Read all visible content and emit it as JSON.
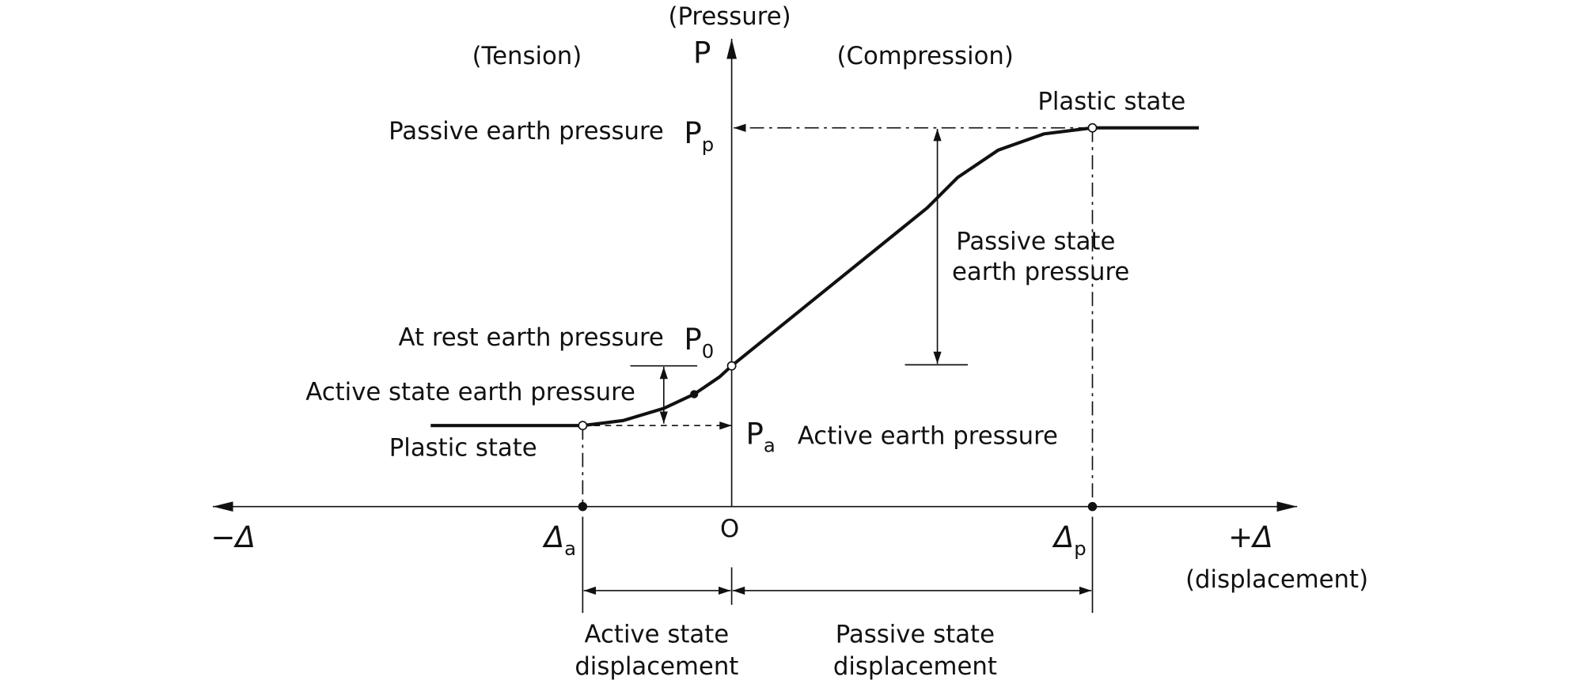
{
  "axes": {
    "y_caption": "(Pressure)",
    "y_label": "P",
    "x_neg": "−Δ",
    "x_pos": "+Δ",
    "x_caption": "(displacement)",
    "origin": "O",
    "delta_a": {
      "main": "Δ",
      "sub": "a"
    },
    "delta_p": {
      "main": "Δ",
      "sub": "p"
    }
  },
  "regions": {
    "left": "(Tension)",
    "right": "(Compression)"
  },
  "labels": {
    "passive_earth_pressure": "Passive earth pressure",
    "p_p": {
      "main": "P",
      "sub": "p"
    },
    "plastic_state_right": "Plastic state",
    "passive_state_earth_pressure": [
      "Passive state",
      "earth pressure"
    ],
    "at_rest_earth_pressure": "At rest earth pressure",
    "p_0": {
      "main": "P",
      "sub": "0"
    },
    "active_state_earth_pressure": "Active state earth pressure",
    "plastic_state_left": "Plastic state",
    "p_a": {
      "main": "P",
      "sub": "a"
    },
    "active_earth_pressure": "Active earth pressure",
    "active_state_displacement": [
      "Active state",
      "displacement"
    ],
    "passive_state_displacement": [
      "Passive state",
      "displacement"
    ]
  }
}
